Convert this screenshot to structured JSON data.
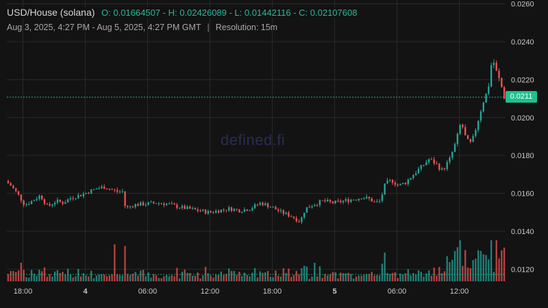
{
  "header": {
    "pair": "USD/House (solana)",
    "ohlc": "O: 0.01664507 - H: 0.02426089 - L: 0.01442116 - C: 0.02107608",
    "range": "Aug 3, 2025, 4:27 PM - Aug 5, 2025, 4:27 PM GMT",
    "separator": "|",
    "resolution": "Resolution: 15m"
  },
  "watermark": "defined.fi",
  "colors": {
    "up": "#26a69a",
    "down": "#ef5350",
    "price_line": "#1fbf8f",
    "background": "#131313",
    "grid": "#2a2a2a"
  },
  "chart_data": {
    "type": "candlestick",
    "title": "",
    "xlabel": "",
    "ylabel": "",
    "ylim": [
      0.0114,
      0.0262
    ],
    "y_ticks": [
      "0.0120",
      "0.0140",
      "0.0160",
      "0.0180",
      "0.0200",
      "0.0220",
      "0.0240",
      "0.0260"
    ],
    "x_ticks": [
      {
        "label": "18:00",
        "hour": 18,
        "bold": false
      },
      {
        "label": "4",
        "hour": 24,
        "bold": true
      },
      {
        "label": "06:00",
        "hour": 30,
        "bold": false
      },
      {
        "label": "12:00",
        "hour": 36,
        "bold": false
      },
      {
        "label": "18:00",
        "hour": 42,
        "bold": false
      },
      {
        "label": "5",
        "hour": 48,
        "bold": true
      },
      {
        "label": "06:00",
        "hour": 54,
        "bold": false
      },
      {
        "label": "12:00",
        "hour": 60,
        "bold": false
      }
    ],
    "x_range_hours": [
      16.45,
      64.45
    ],
    "interval": "15m",
    "last_price": "0.0211",
    "last_price_value": 0.02107608,
    "open": 0.01664507,
    "high": 0.02426089,
    "low": 0.01442116,
    "close": 0.02107608,
    "close_path": [
      [
        16.45,
        0.01665
      ],
      [
        17.0,
        0.0164
      ],
      [
        17.7,
        0.0159
      ],
      [
        18.3,
        0.0154
      ],
      [
        19.0,
        0.0156
      ],
      [
        19.8,
        0.0159
      ],
      [
        20.5,
        0.0153
      ],
      [
        21.3,
        0.0156
      ],
      [
        22.0,
        0.0155
      ],
      [
        22.8,
        0.0158
      ],
      [
        23.6,
        0.0159
      ],
      [
        24.5,
        0.0161
      ],
      [
        25.2,
        0.01625
      ],
      [
        26.0,
        0.01635
      ],
      [
        26.6,
        0.0162
      ],
      [
        27.2,
        0.0161
      ],
      [
        27.7,
        0.0161
      ],
      [
        28.0,
        0.0152
      ],
      [
        28.8,
        0.0154
      ],
      [
        30.0,
        0.01545
      ],
      [
        31.0,
        0.0155
      ],
      [
        32.0,
        0.01545
      ],
      [
        33.0,
        0.0153
      ],
      [
        34.0,
        0.0152
      ],
      [
        35.0,
        0.0151
      ],
      [
        36.0,
        0.015
      ],
      [
        37.0,
        0.0151
      ],
      [
        38.0,
        0.0152
      ],
      [
        39.0,
        0.0151
      ],
      [
        40.0,
        0.0152
      ],
      [
        41.0,
        0.0155
      ],
      [
        42.0,
        0.0153
      ],
      [
        43.0,
        0.015
      ],
      [
        44.0,
        0.0148
      ],
      [
        44.8,
        0.0145
      ],
      [
        45.3,
        0.0152
      ],
      [
        46.0,
        0.0154
      ],
      [
        47.0,
        0.0156
      ],
      [
        48.0,
        0.0155
      ],
      [
        49.0,
        0.0156
      ],
      [
        50.0,
        0.0157
      ],
      [
        50.8,
        0.0158
      ],
      [
        51.5,
        0.0157
      ],
      [
        52.0,
        0.0155
      ],
      [
        52.5,
        0.0156
      ],
      [
        53.0,
        0.0165
      ],
      [
        53.6,
        0.0167
      ],
      [
        54.3,
        0.0164
      ],
      [
        55.0,
        0.0166
      ],
      [
        55.7,
        0.017
      ],
      [
        56.5,
        0.0174
      ],
      [
        57.2,
        0.0178
      ],
      [
        57.8,
        0.0176
      ],
      [
        58.5,
        0.0172
      ],
      [
        59.2,
        0.0178
      ],
      [
        59.8,
        0.0187
      ],
      [
        60.3,
        0.0198
      ],
      [
        60.8,
        0.0188
      ],
      [
        61.3,
        0.0186
      ],
      [
        61.8,
        0.0196
      ],
      [
        62.4,
        0.0208
      ],
      [
        62.9,
        0.0215
      ],
      [
        63.3,
        0.0232
      ],
      [
        63.7,
        0.0224
      ],
      [
        64.1,
        0.0218
      ],
      [
        64.45,
        0.02108
      ]
    ],
    "volume_spikes": [
      {
        "hour": 26.9,
        "level": 0.9
      },
      {
        "hour": 46.0,
        "level": 0.45
      },
      {
        "hour": 52.8,
        "level": 0.7
      },
      {
        "hour": 60.0,
        "level": 0.65
      },
      {
        "hour": 63.5,
        "level": 1.0
      }
    ]
  }
}
